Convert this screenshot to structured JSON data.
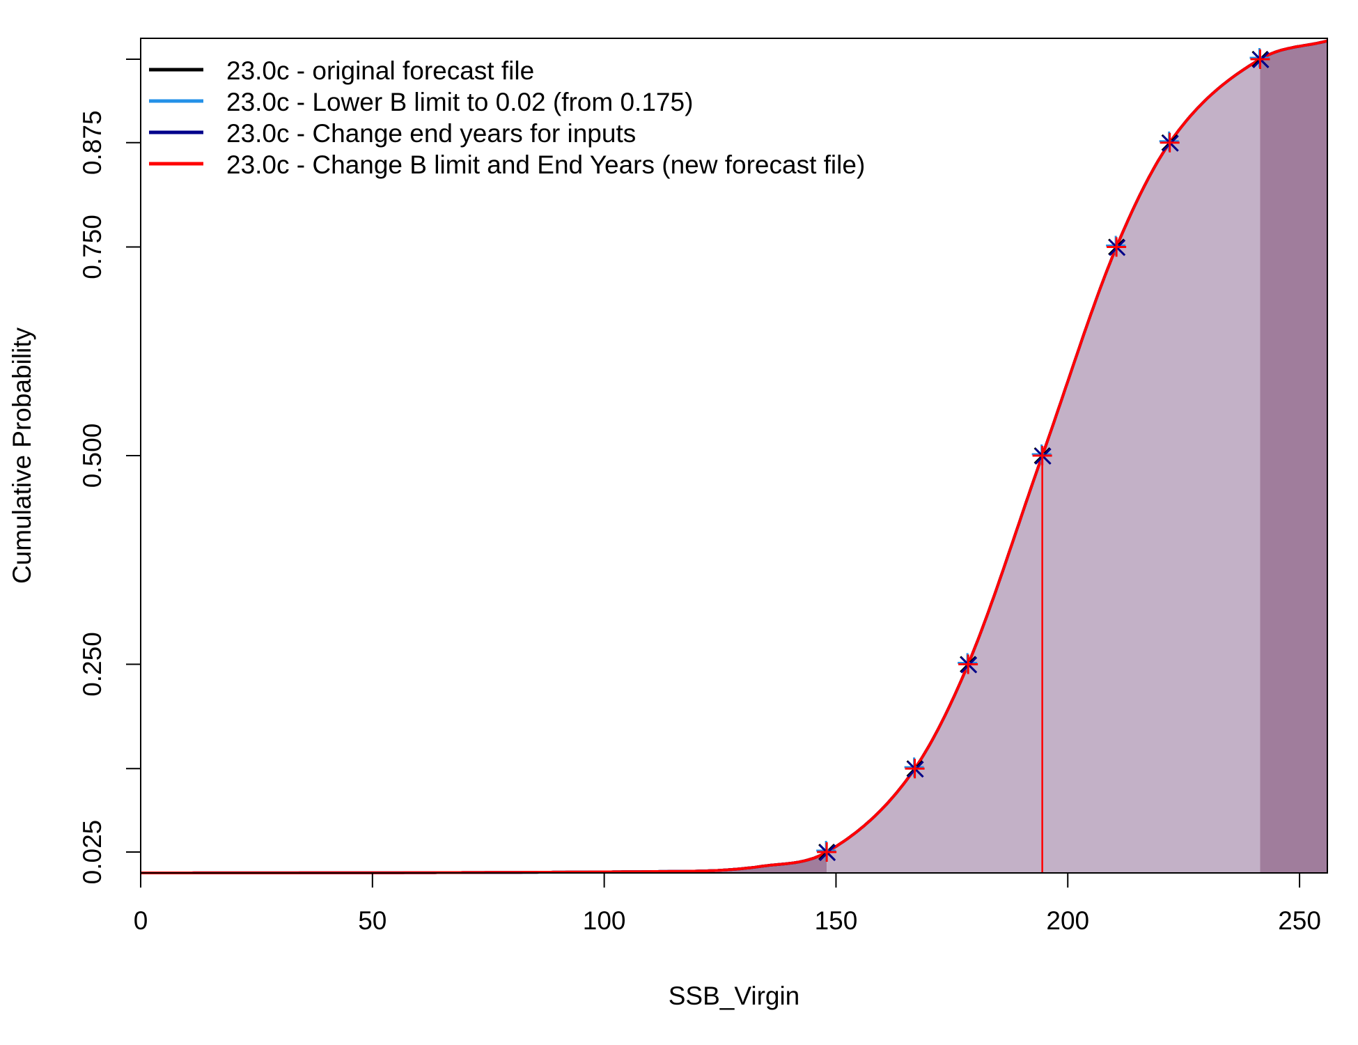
{
  "chart_data": {
    "type": "line",
    "title": "",
    "xlabel": "SSB_Virgin",
    "ylabel": "Cumulative Probability",
    "xlim": [
      0,
      256
    ],
    "ylim": [
      0,
      1
    ],
    "x_ticks": [
      0,
      50,
      100,
      150,
      200,
      250
    ],
    "x_tick_labels": [
      "0",
      "50",
      "100",
      "150",
      "200",
      "250"
    ],
    "y_ticks": [
      0.025,
      0.125,
      0.25,
      0.5,
      0.75,
      0.875,
      0.975
    ],
    "y_tick_labels": [
      "0.025",
      "",
      "0.250",
      "0.500",
      "0.750",
      "0.875",
      ""
    ],
    "grid": false,
    "legend_position": "top-left",
    "median": 194.5,
    "shaded_interval": [
      148,
      241.5
    ],
    "fill_colors": {
      "inner": "#C3B1C7",
      "outer": "#A07D9C"
    },
    "series": [
      {
        "name": "23.0c - original forecast file",
        "color": "#000000"
      },
      {
        "name": "23.0c - Lower B limit to 0.02 (from 0.175)",
        "color": "#2491E8"
      },
      {
        "name": "23.0c - Change end years for inputs",
        "color": "#00008B"
      },
      {
        "name": "23.0c - Change B limit and End Years (new forecast file)",
        "color": "#FF0000",
        "quantile_points": [
          {
            "x": 148,
            "y": 0.025
          },
          {
            "x": 167,
            "y": 0.125
          },
          {
            "x": 178.5,
            "y": 0.25
          },
          {
            "x": 194.5,
            "y": 0.5
          },
          {
            "x": 210.5,
            "y": 0.75
          },
          {
            "x": 222,
            "y": 0.875
          },
          {
            "x": 241.5,
            "y": 0.975
          }
        ]
      }
    ]
  }
}
